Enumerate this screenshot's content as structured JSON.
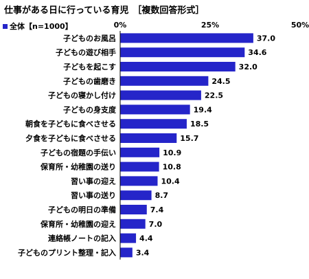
{
  "title": "仕事がある日に行っている育児",
  "title_note": "［複数回答形式］",
  "legend_label": "全体【n=1000】",
  "colors": {
    "bar": "#2525c9",
    "axis": "#000000",
    "grid": "#cccccc"
  },
  "chart_data": {
    "type": "bar",
    "orientation": "horizontal",
    "title": "仕事がある日に行っている育児",
    "categories": [
      "子どものお風呂",
      "子どもの遊び相手",
      "子どもを起こす",
      "子どもの歯磨き",
      "子どもの寝かし付け",
      "子どもの身支度",
      "朝食を子どもに食べさせる",
      "夕食を子どもに食べさせる",
      "子どもの宿題の手伝い",
      "保育所・幼稚園の送り",
      "習い事の迎え",
      "習い事の送り",
      "子どもの明日の準備",
      "保育所・幼稚園の迎え",
      "連絡帳ノートの記入",
      "子どものプリント整理・記入"
    ],
    "series": [
      {
        "name": "全体【n=1000】",
        "values": [
          37.0,
          34.6,
          32.0,
          24.5,
          22.5,
          19.4,
          18.5,
          15.7,
          10.9,
          10.8,
          10.4,
          8.7,
          7.4,
          7.0,
          4.4,
          3.4
        ],
        "labels": [
          "37.0",
          "34.6",
          "32.0",
          "24.5",
          "22.5",
          "19.4",
          "18.5",
          "15.7",
          "10.9",
          "10.8",
          "10.4",
          "8.7",
          "7.4",
          "7.0",
          "4.4",
          "3.4"
        ]
      }
    ],
    "xlim": [
      0,
      50
    ],
    "xticks": [
      "0%",
      "25%",
      "50%"
    ],
    "legend": "top-left"
  }
}
